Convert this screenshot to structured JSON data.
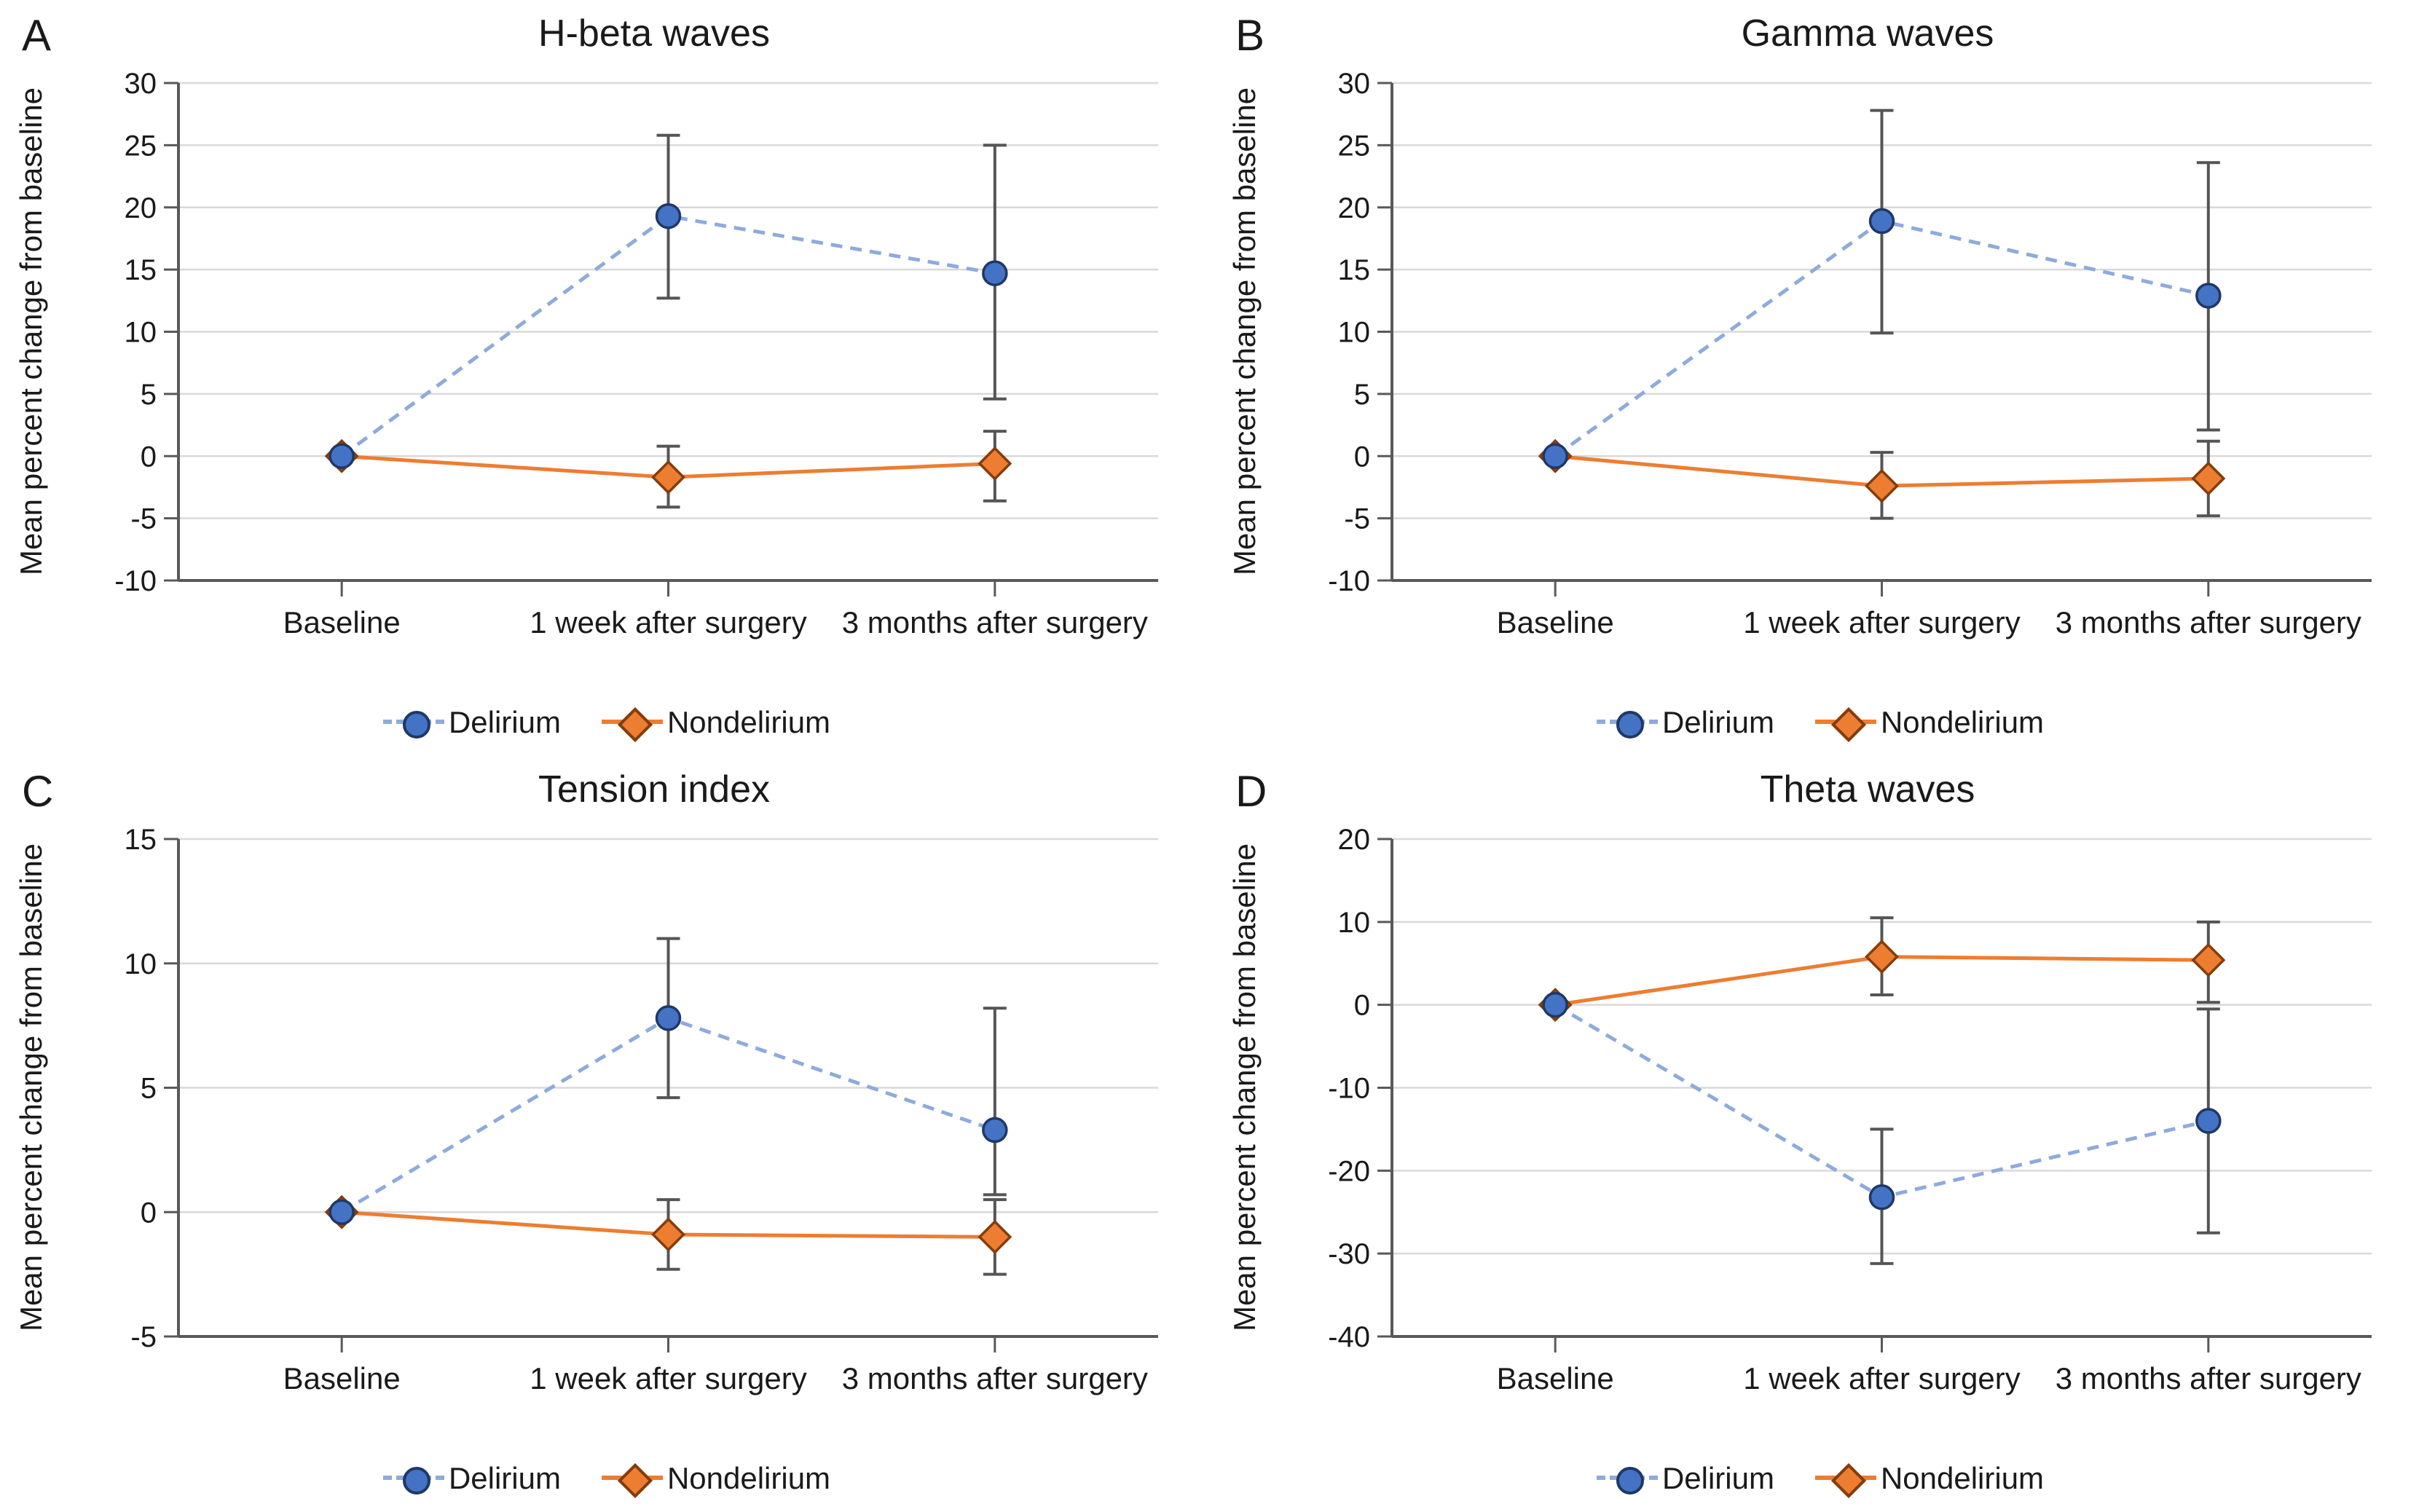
{
  "figure": {
    "background": "#ffffff"
  },
  "colors": {
    "delirium_marker": "#4472C4",
    "delirium_marker_border": "#1F3864",
    "delirium_line": "#8FAADC",
    "nondelirium_marker": "#ED7D31",
    "nondelirium_marker_border": "#843C0C",
    "nondelirium_line": "#ED7D31",
    "error_bar": "#555555",
    "gridline": "#D9D9D9",
    "axis": "#595959",
    "text": "#1A1A1A"
  },
  "chart_data": [
    {
      "type": "line",
      "panel_label": "A",
      "title": "H-beta waves",
      "ylabel": "Mean percent change from baseline",
      "xlabel": "",
      "categories": [
        "Baseline",
        "1 week after surgery",
        "3 months after surgery"
      ],
      "ylim": [
        -10,
        30
      ],
      "yticks": [
        30,
        25,
        20,
        15,
        10,
        5,
        0,
        -5,
        -10
      ],
      "grid": true,
      "legend_position": "bottom",
      "series": [
        {
          "name": "Delirium",
          "marker": "circle",
          "line_style": "dashed",
          "values": [
            0,
            19.3,
            14.7
          ],
          "err_low": [
            null,
            12.7,
            4.6
          ],
          "err_high": [
            null,
            25.8,
            25.0
          ]
        },
        {
          "name": "Nondelirium",
          "marker": "diamond",
          "line_style": "solid",
          "values": [
            0,
            -1.7,
            -0.6
          ],
          "err_low": [
            null,
            -4.1,
            -3.6
          ],
          "err_high": [
            null,
            0.8,
            2.0
          ]
        }
      ]
    },
    {
      "type": "line",
      "panel_label": "B",
      "title": "Gamma waves",
      "ylabel": "Mean percent change from baseline",
      "xlabel": "",
      "categories": [
        "Baseline",
        "1 week after surgery",
        "3 months after surgery"
      ],
      "ylim": [
        -10,
        30
      ],
      "yticks": [
        30,
        25,
        20,
        15,
        10,
        5,
        0,
        -5,
        -10
      ],
      "grid": true,
      "legend_position": "bottom",
      "series": [
        {
          "name": "Delirium",
          "marker": "circle",
          "line_style": "dashed",
          "values": [
            0,
            18.9,
            12.9
          ],
          "err_low": [
            null,
            9.9,
            2.1
          ],
          "err_high": [
            null,
            27.8,
            23.6
          ]
        },
        {
          "name": "Nondelirium",
          "marker": "diamond",
          "line_style": "solid",
          "values": [
            0,
            -2.4,
            -1.8
          ],
          "err_low": [
            null,
            -5.0,
            -4.8
          ],
          "err_high": [
            null,
            0.3,
            1.2
          ]
        }
      ]
    },
    {
      "type": "line",
      "panel_label": "C",
      "title": "Tension index",
      "ylabel": "Mean percent change from baseline",
      "xlabel": "",
      "categories": [
        "Baseline",
        "1 week after surgery",
        "3 months after surgery"
      ],
      "ylim": [
        -5,
        15
      ],
      "yticks": [
        15,
        10,
        5,
        0,
        -5
      ],
      "grid": true,
      "legend_position": "bottom",
      "series": [
        {
          "name": "Delirium",
          "marker": "circle",
          "line_style": "dashed",
          "values": [
            0,
            7.8,
            3.3
          ],
          "err_low": [
            null,
            4.6,
            0.7
          ],
          "err_high": [
            null,
            11.0,
            8.2
          ]
        },
        {
          "name": "Nondelirium",
          "marker": "diamond",
          "line_style": "solid",
          "values": [
            0,
            -0.9,
            -1.0
          ],
          "err_low": [
            null,
            -2.3,
            -2.5
          ],
          "err_high": [
            null,
            0.5,
            0.5
          ]
        }
      ]
    },
    {
      "type": "line",
      "panel_label": "D",
      "title": "Theta waves",
      "ylabel": "Mean percent change from baseline",
      "xlabel": "",
      "categories": [
        "Baseline",
        "1 week after surgery",
        "3 months after surgery"
      ],
      "ylim": [
        -40,
        20
      ],
      "yticks": [
        20,
        10,
        0,
        -10,
        -20,
        -30,
        -40
      ],
      "grid": true,
      "legend_position": "bottom",
      "series": [
        {
          "name": "Delirium",
          "marker": "circle",
          "line_style": "dashed",
          "values": [
            0,
            -23.2,
            -14.0
          ],
          "err_low": [
            null,
            -31.2,
            -27.5
          ],
          "err_high": [
            null,
            -15.0,
            -0.5
          ]
        },
        {
          "name": "Nondelirium",
          "marker": "diamond",
          "line_style": "solid",
          "values": [
            0,
            5.8,
            5.4
          ],
          "err_low": [
            null,
            1.2,
            0.3
          ],
          "err_high": [
            null,
            10.5,
            10.0
          ]
        }
      ]
    }
  ]
}
